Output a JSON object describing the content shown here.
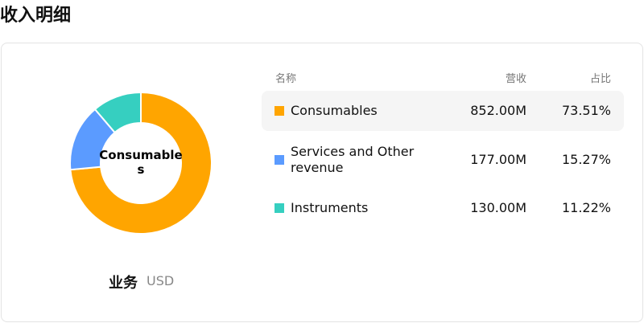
{
  "header": {
    "title": "收入明细"
  },
  "chart_data": {
    "type": "pie",
    "donut": true,
    "categories": [
      "Consumables",
      "Services and Other revenue",
      "Instruments"
    ],
    "values": [
      852,
      177,
      130
    ],
    "value_labels": [
      "852.00M",
      "177.00M",
      "130.00M"
    ],
    "share_labels": [
      "73.51%",
      "15.27%",
      "11.22%"
    ],
    "colors": [
      "#ffa500",
      "#5b9bff",
      "#36cfc0"
    ],
    "selected": 0
  },
  "table": {
    "columns": [
      "名称",
      "营收",
      "占比"
    ]
  },
  "footer": {
    "label": "业务",
    "unit": "USD"
  }
}
